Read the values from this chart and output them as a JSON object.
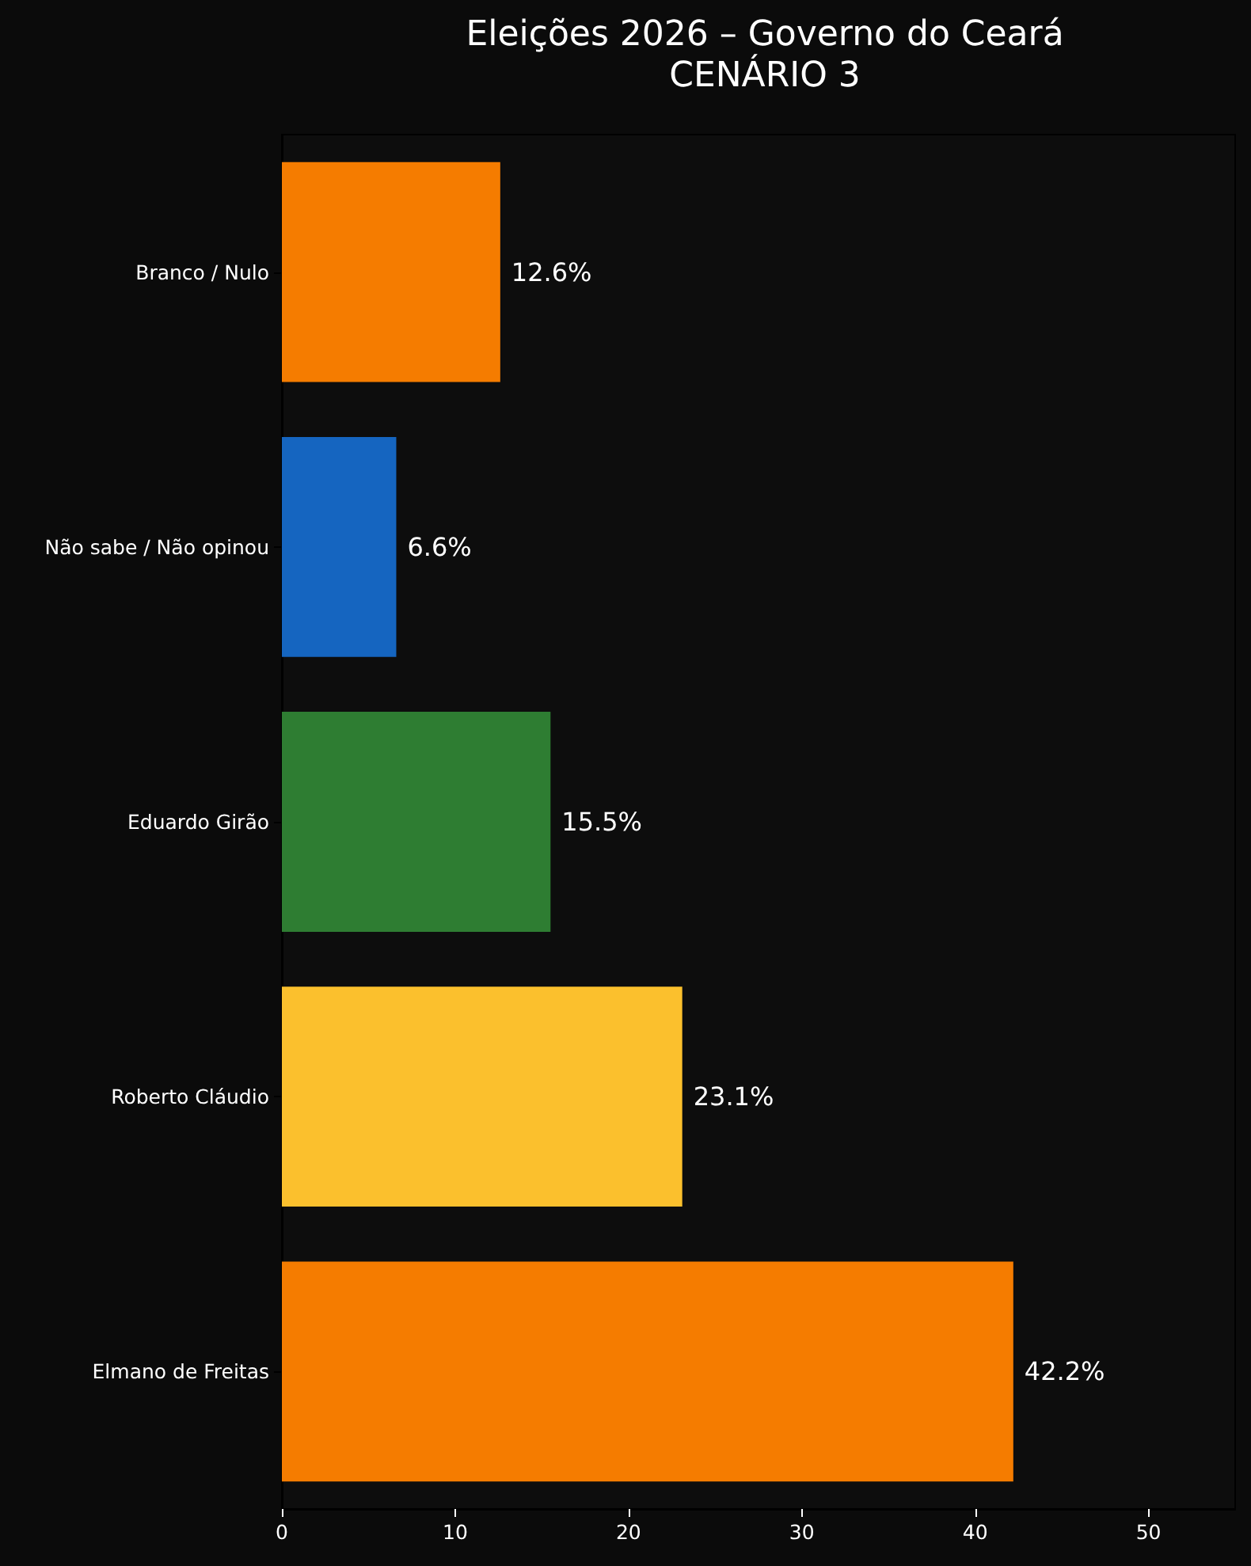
{
  "chart_data": {
    "type": "bar",
    "orientation": "horizontal",
    "title": "Eleições 2026 – Governo do Ceará",
    "subtitle": "CENÁRIO 3",
    "categories": [
      "Branco / Nulo",
      "Não sabe / Não opinou",
      "Eduardo Girão",
      "Roberto Cláudio",
      "Elmano de Freitas"
    ],
    "values": [
      12.6,
      6.6,
      15.5,
      23.1,
      42.2
    ],
    "colors": [
      "#f57c00",
      "#1565c0",
      "#2e7d32",
      "#fbc02d",
      "#f57c00"
    ],
    "value_labels": [
      "12.6%",
      "6.6%",
      "15.5%",
      "23.1%",
      "42.2%"
    ],
    "xlim": [
      0,
      55
    ],
    "xticks": [
      0,
      10,
      20,
      30,
      40,
      50
    ]
  }
}
